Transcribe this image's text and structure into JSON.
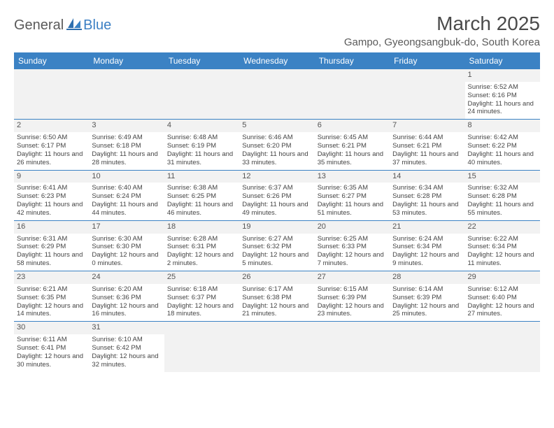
{
  "logo": {
    "part1": "General",
    "part2": "Blue"
  },
  "title": "March 2025",
  "location": "Gampo, Gyeongsangbuk-do, South Korea",
  "colors": {
    "header_bg": "#3b82c4",
    "header_text": "#ffffff",
    "row_border": "#3b82c4",
    "daynum_bg": "#f2f2f2",
    "body_text": "#444444"
  },
  "day_names": [
    "Sunday",
    "Monday",
    "Tuesday",
    "Wednesday",
    "Thursday",
    "Friday",
    "Saturday"
  ],
  "weeks": [
    [
      null,
      null,
      null,
      null,
      null,
      null,
      {
        "n": "1",
        "sunrise": "6:52 AM",
        "sunset": "6:16 PM",
        "day_h": 11,
        "day_m": 24
      }
    ],
    [
      {
        "n": "2",
        "sunrise": "6:50 AM",
        "sunset": "6:17 PM",
        "day_h": 11,
        "day_m": 26
      },
      {
        "n": "3",
        "sunrise": "6:49 AM",
        "sunset": "6:18 PM",
        "day_h": 11,
        "day_m": 28
      },
      {
        "n": "4",
        "sunrise": "6:48 AM",
        "sunset": "6:19 PM",
        "day_h": 11,
        "day_m": 31
      },
      {
        "n": "5",
        "sunrise": "6:46 AM",
        "sunset": "6:20 PM",
        "day_h": 11,
        "day_m": 33
      },
      {
        "n": "6",
        "sunrise": "6:45 AM",
        "sunset": "6:21 PM",
        "day_h": 11,
        "day_m": 35
      },
      {
        "n": "7",
        "sunrise": "6:44 AM",
        "sunset": "6:21 PM",
        "day_h": 11,
        "day_m": 37
      },
      {
        "n": "8",
        "sunrise": "6:42 AM",
        "sunset": "6:22 PM",
        "day_h": 11,
        "day_m": 40
      }
    ],
    [
      {
        "n": "9",
        "sunrise": "6:41 AM",
        "sunset": "6:23 PM",
        "day_h": 11,
        "day_m": 42
      },
      {
        "n": "10",
        "sunrise": "6:40 AM",
        "sunset": "6:24 PM",
        "day_h": 11,
        "day_m": 44
      },
      {
        "n": "11",
        "sunrise": "6:38 AM",
        "sunset": "6:25 PM",
        "day_h": 11,
        "day_m": 46
      },
      {
        "n": "12",
        "sunrise": "6:37 AM",
        "sunset": "6:26 PM",
        "day_h": 11,
        "day_m": 49
      },
      {
        "n": "13",
        "sunrise": "6:35 AM",
        "sunset": "6:27 PM",
        "day_h": 11,
        "day_m": 51
      },
      {
        "n": "14",
        "sunrise": "6:34 AM",
        "sunset": "6:28 PM",
        "day_h": 11,
        "day_m": 53
      },
      {
        "n": "15",
        "sunrise": "6:32 AM",
        "sunset": "6:28 PM",
        "day_h": 11,
        "day_m": 55
      }
    ],
    [
      {
        "n": "16",
        "sunrise": "6:31 AM",
        "sunset": "6:29 PM",
        "day_h": 11,
        "day_m": 58
      },
      {
        "n": "17",
        "sunrise": "6:30 AM",
        "sunset": "6:30 PM",
        "day_h": 12,
        "day_m": 0
      },
      {
        "n": "18",
        "sunrise": "6:28 AM",
        "sunset": "6:31 PM",
        "day_h": 12,
        "day_m": 2
      },
      {
        "n": "19",
        "sunrise": "6:27 AM",
        "sunset": "6:32 PM",
        "day_h": 12,
        "day_m": 5
      },
      {
        "n": "20",
        "sunrise": "6:25 AM",
        "sunset": "6:33 PM",
        "day_h": 12,
        "day_m": 7
      },
      {
        "n": "21",
        "sunrise": "6:24 AM",
        "sunset": "6:34 PM",
        "day_h": 12,
        "day_m": 9
      },
      {
        "n": "22",
        "sunrise": "6:22 AM",
        "sunset": "6:34 PM",
        "day_h": 12,
        "day_m": 11
      }
    ],
    [
      {
        "n": "23",
        "sunrise": "6:21 AM",
        "sunset": "6:35 PM",
        "day_h": 12,
        "day_m": 14
      },
      {
        "n": "24",
        "sunrise": "6:20 AM",
        "sunset": "6:36 PM",
        "day_h": 12,
        "day_m": 16
      },
      {
        "n": "25",
        "sunrise": "6:18 AM",
        "sunset": "6:37 PM",
        "day_h": 12,
        "day_m": 18
      },
      {
        "n": "26",
        "sunrise": "6:17 AM",
        "sunset": "6:38 PM",
        "day_h": 12,
        "day_m": 21
      },
      {
        "n": "27",
        "sunrise": "6:15 AM",
        "sunset": "6:39 PM",
        "day_h": 12,
        "day_m": 23
      },
      {
        "n": "28",
        "sunrise": "6:14 AM",
        "sunset": "6:39 PM",
        "day_h": 12,
        "day_m": 25
      },
      {
        "n": "29",
        "sunrise": "6:12 AM",
        "sunset": "6:40 PM",
        "day_h": 12,
        "day_m": 27
      }
    ],
    [
      {
        "n": "30",
        "sunrise": "6:11 AM",
        "sunset": "6:41 PM",
        "day_h": 12,
        "day_m": 30
      },
      {
        "n": "31",
        "sunrise": "6:10 AM",
        "sunset": "6:42 PM",
        "day_h": 12,
        "day_m": 32
      },
      null,
      null,
      null,
      null,
      null
    ]
  ]
}
